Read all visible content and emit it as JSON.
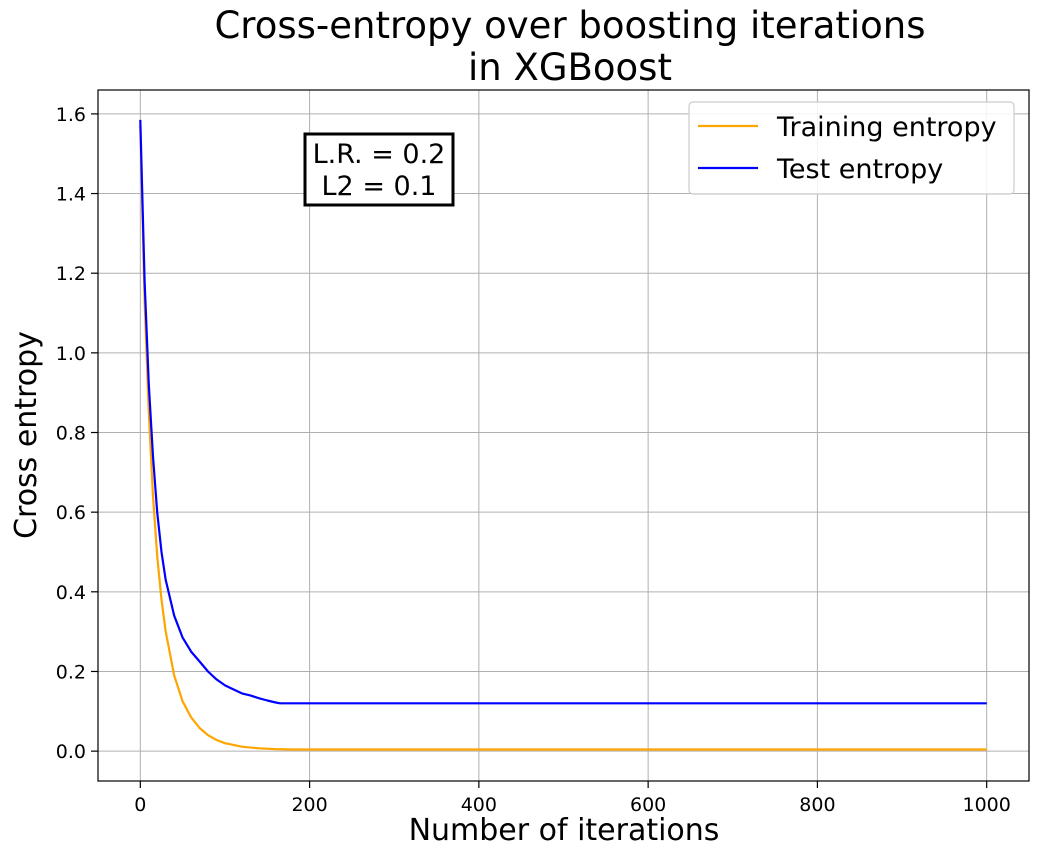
{
  "chart_data": {
    "type": "line",
    "title_lines": [
      "Cross-entropy over boosting iterations",
      "in XGBoost"
    ],
    "xlabel": "Number of iterations",
    "ylabel": "Cross entropy",
    "xlim": [
      -50,
      1050
    ],
    "ylim": [
      -0.075,
      1.66
    ],
    "xticks": [
      0,
      200,
      400,
      600,
      800,
      1000
    ],
    "xtick_labels": [
      "0",
      "200",
      "400",
      "600",
      "800",
      "1000"
    ],
    "yticks": [
      0.0,
      0.2,
      0.4,
      0.6,
      0.8,
      1.0,
      1.2,
      1.4,
      1.6
    ],
    "ytick_labels": [
      "0.0",
      "0.2",
      "0.4",
      "0.6",
      "0.8",
      "1.0",
      "1.2",
      "1.4",
      "1.6"
    ],
    "grid": true,
    "legend_position": "top-right",
    "annotation": {
      "lines": [
        "L.R. = 0.2",
        "L2 = 0.1"
      ],
      "x": 280,
      "y": 1.465
    },
    "series": [
      {
        "name": "Training entropy",
        "color": "#FFA500",
        "x": [
          0,
          5,
          10,
          15,
          20,
          25,
          30,
          40,
          50,
          60,
          70,
          80,
          90,
          100,
          120,
          140,
          160,
          180,
          200,
          300,
          400,
          500,
          600,
          700,
          800,
          900,
          1000
        ],
        "y": [
          1.57,
          1.13,
          0.85,
          0.64,
          0.49,
          0.38,
          0.3,
          0.19,
          0.125,
          0.085,
          0.058,
          0.04,
          0.028,
          0.02,
          0.011,
          0.007,
          0.005,
          0.004,
          0.004,
          0.004,
          0.004,
          0.004,
          0.004,
          0.004,
          0.004,
          0.004,
          0.004
        ]
      },
      {
        "name": "Test entropy",
        "color": "#0000FF",
        "x": [
          0,
          5,
          10,
          15,
          20,
          25,
          30,
          40,
          50,
          60,
          70,
          80,
          90,
          100,
          110,
          120,
          130,
          140,
          150,
          160,
          165,
          200,
          300,
          400,
          500,
          600,
          700,
          800,
          900,
          1000
        ],
        "y": [
          1.585,
          1.18,
          0.92,
          0.74,
          0.6,
          0.5,
          0.43,
          0.34,
          0.285,
          0.25,
          0.225,
          0.2,
          0.18,
          0.165,
          0.155,
          0.145,
          0.14,
          0.133,
          0.127,
          0.122,
          0.12,
          0.12,
          0.12,
          0.12,
          0.12,
          0.12,
          0.12,
          0.12,
          0.12,
          0.12
        ]
      }
    ]
  }
}
